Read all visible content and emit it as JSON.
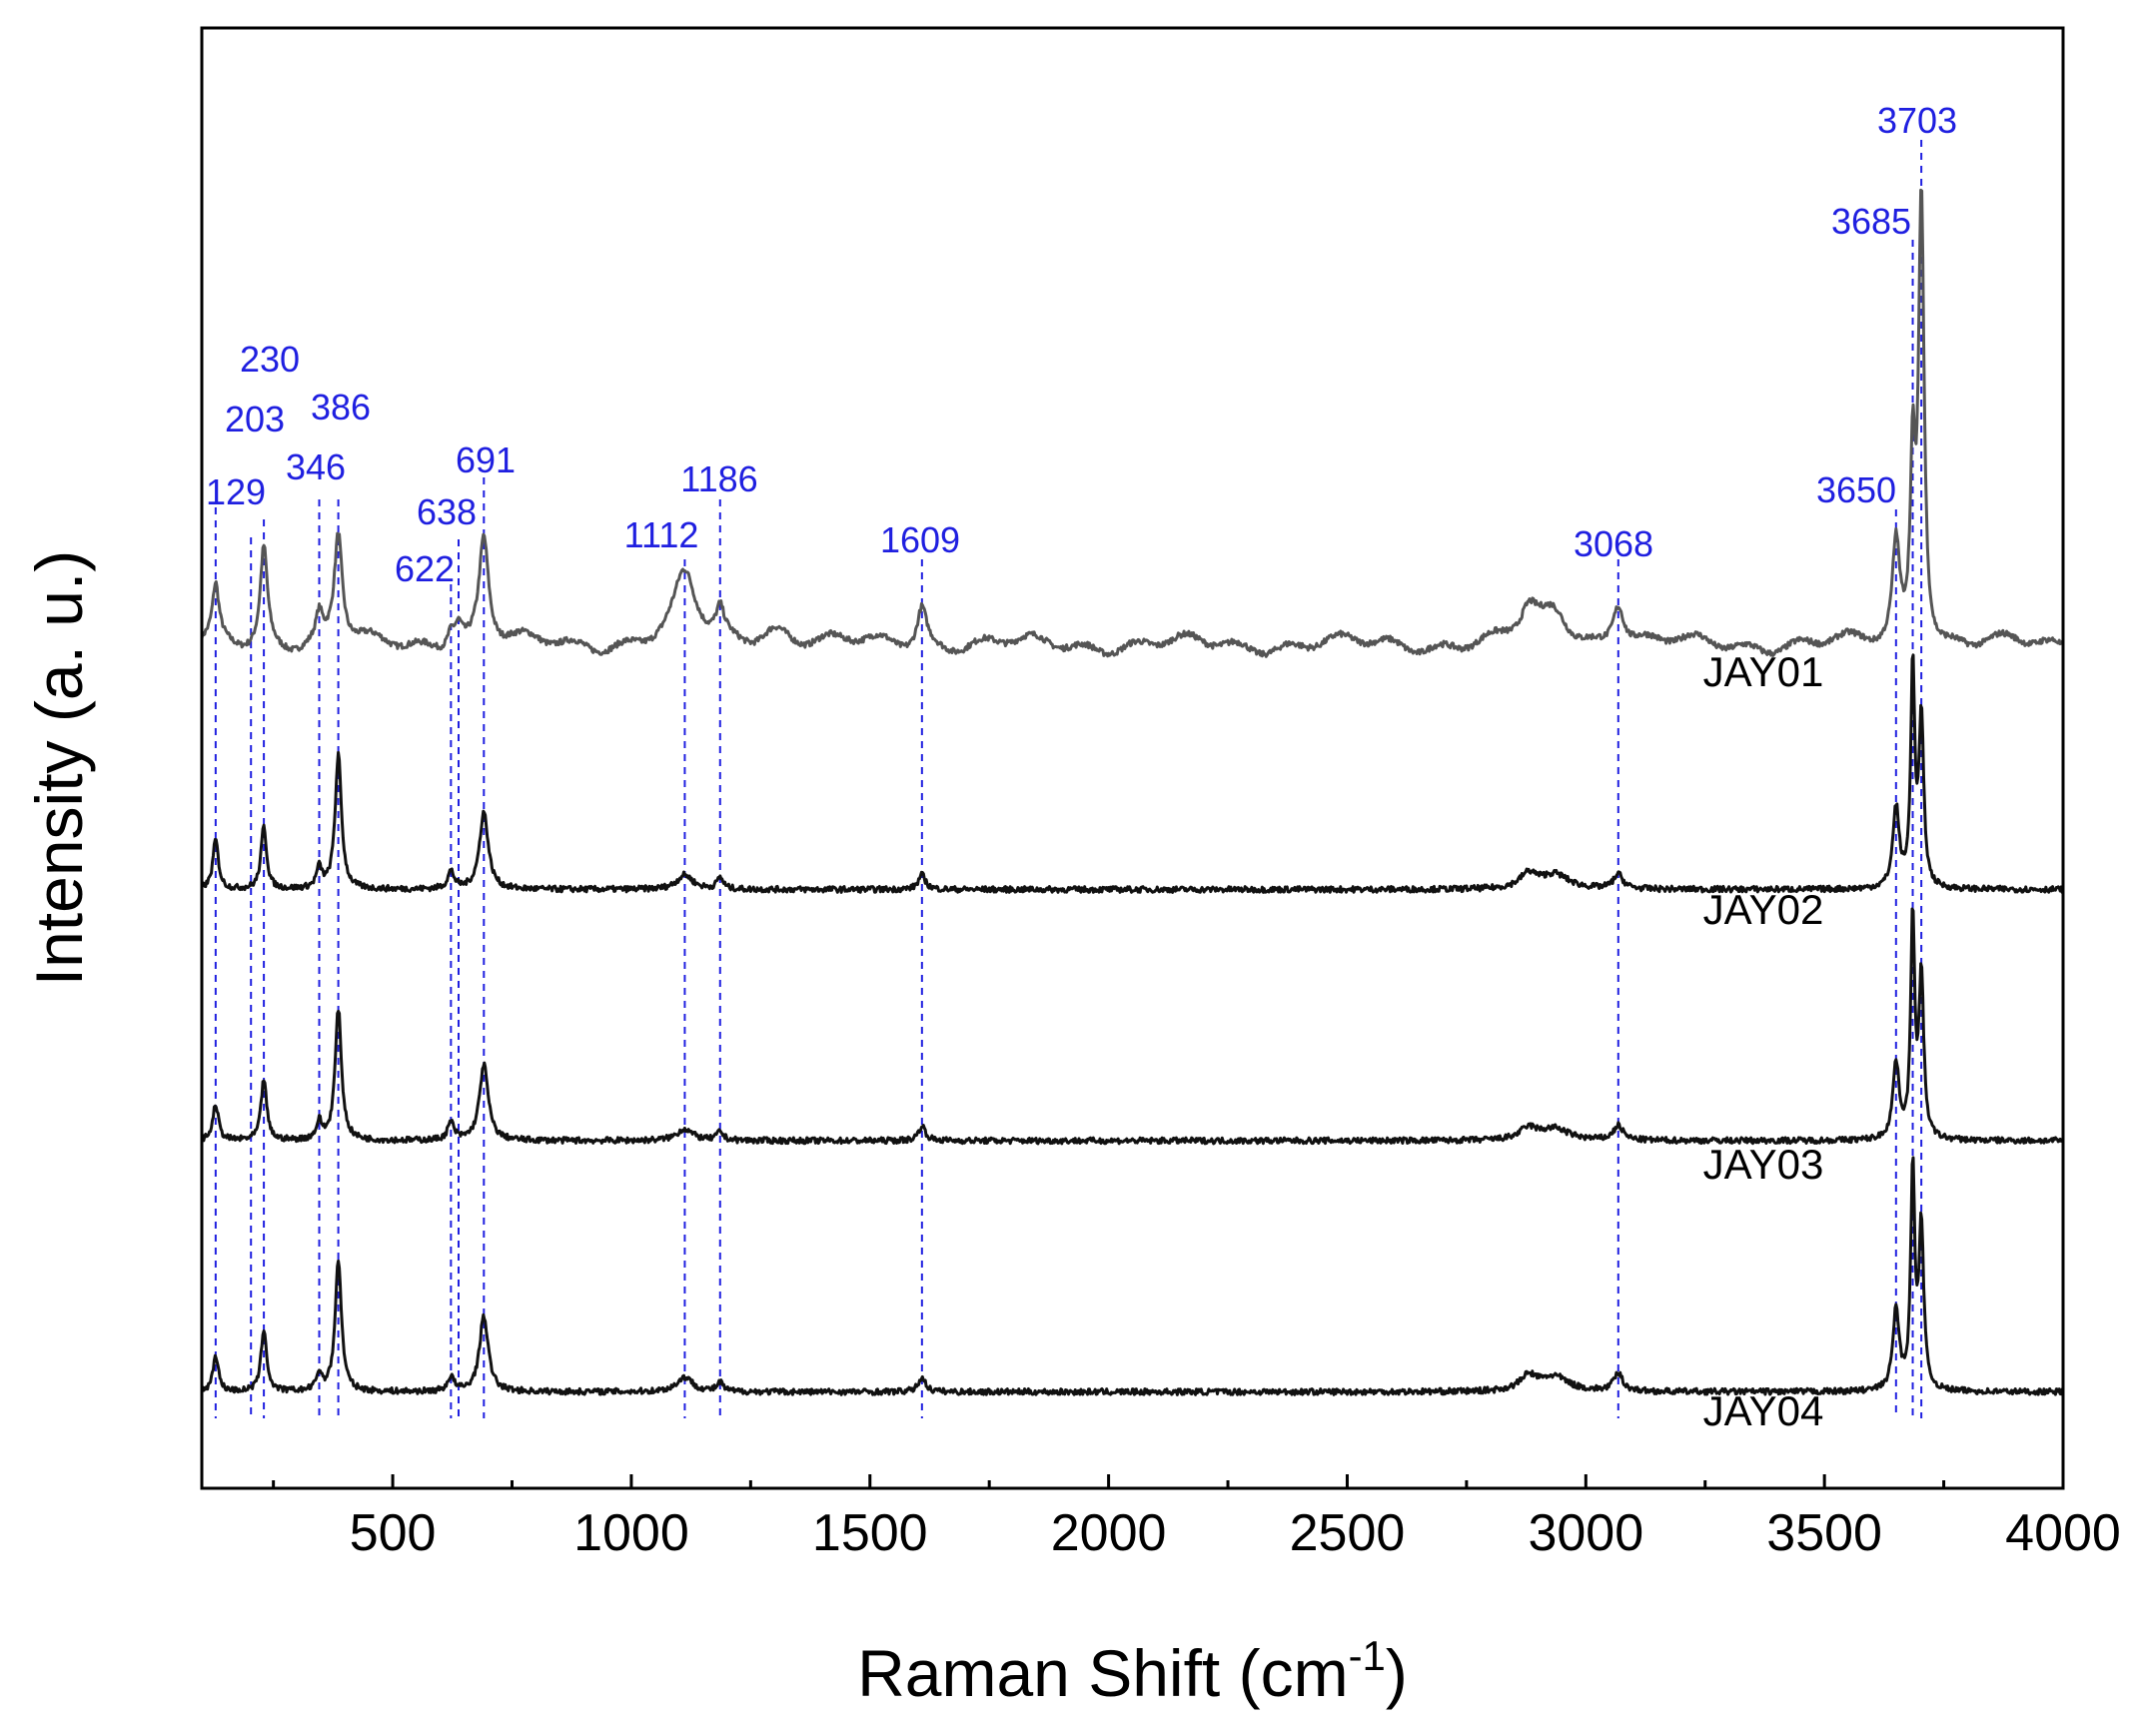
{
  "chart_data": {
    "type": "line",
    "title": "",
    "xlabel": "Raman Shift (cm",
    "xlabel_sup": "-1",
    "xlabel_end": ")",
    "ylabel": "Intensity (a. u.)",
    "xlim": [
      100,
      4000
    ],
    "ylim": [
      0,
      1
    ],
    "x_ticks": [
      500,
      1000,
      1500,
      2000,
      2500,
      3000,
      3500,
      4000
    ],
    "x_tick_labels": [
      "500",
      "1000",
      "1500",
      "2000",
      "2500",
      "3000",
      "3500",
      "4000"
    ],
    "x_minor_ticks": [
      250,
      750,
      1250,
      1750,
      2250,
      2750,
      3250,
      3750
    ],
    "y_ticks_shown": false,
    "grid": false,
    "legend": "none",
    "peak_line_color": "#1f1fe0",
    "peaks": [
      129,
      203,
      230,
      346,
      386,
      622,
      638,
      691,
      1112,
      1186,
      1609,
      3068,
      3650,
      3685,
      3703
    ],
    "peak_labels": [
      "129",
      "203",
      "230",
      "346",
      "386",
      "622",
      "638",
      "691",
      "1112",
      "1186",
      "1609",
      "3068",
      "3650",
      "3685",
      "3703"
    ],
    "series": [
      {
        "name": "JAY01",
        "color": "#555555",
        "baseline": 0.578,
        "peaks": [
          {
            "x": 129,
            "h": 0.036,
            "w": 8
          },
          {
            "x": 230,
            "h": 0.068,
            "w": 9
          },
          {
            "x": 346,
            "h": 0.018,
            "w": 8
          },
          {
            "x": 386,
            "h": 0.075,
            "w": 10
          },
          {
            "x": 622,
            "h": 0.012,
            "w": 10
          },
          {
            "x": 638,
            "h": 0.014,
            "w": 10
          },
          {
            "x": 691,
            "h": 0.073,
            "w": 12
          },
          {
            "x": 1112,
            "h": 0.045,
            "w": 28
          },
          {
            "x": 1186,
            "h": 0.018,
            "w": 10
          },
          {
            "x": 1300,
            "h": 0.012,
            "w": 40
          },
          {
            "x": 1609,
            "h": 0.028,
            "w": 12
          },
          {
            "x": 2880,
            "h": 0.02,
            "w": 22
          },
          {
            "x": 2935,
            "h": 0.022,
            "w": 35
          },
          {
            "x": 3068,
            "h": 0.03,
            "w": 15
          },
          {
            "x": 3650,
            "h": 0.068,
            "w": 9
          },
          {
            "x": 3685,
            "h": 0.12,
            "w": 6
          },
          {
            "x": 3703,
            "h": 0.31,
            "w": 7
          }
        ]
      },
      {
        "name": "JAY02",
        "color": "#111111",
        "baseline": 0.41,
        "peaks": [
          {
            "x": 129,
            "h": 0.034,
            "w": 7
          },
          {
            "x": 230,
            "h": 0.043,
            "w": 7
          },
          {
            "x": 346,
            "h": 0.014,
            "w": 7
          },
          {
            "x": 386,
            "h": 0.092,
            "w": 8
          },
          {
            "x": 622,
            "h": 0.012,
            "w": 8
          },
          {
            "x": 691,
            "h": 0.053,
            "w": 11
          },
          {
            "x": 1112,
            "h": 0.01,
            "w": 20
          },
          {
            "x": 1186,
            "h": 0.008,
            "w": 8
          },
          {
            "x": 1609,
            "h": 0.01,
            "w": 9
          },
          {
            "x": 2880,
            "h": 0.01,
            "w": 22
          },
          {
            "x": 2935,
            "h": 0.01,
            "w": 35
          },
          {
            "x": 3068,
            "h": 0.01,
            "w": 12
          },
          {
            "x": 3650,
            "h": 0.055,
            "w": 8
          },
          {
            "x": 3685,
            "h": 0.15,
            "w": 5
          },
          {
            "x": 3703,
            "h": 0.115,
            "w": 6
          }
        ]
      },
      {
        "name": "JAY03",
        "color": "#111111",
        "baseline": 0.238,
        "peaks": [
          {
            "x": 129,
            "h": 0.025,
            "w": 7
          },
          {
            "x": 230,
            "h": 0.042,
            "w": 7
          },
          {
            "x": 346,
            "h": 0.012,
            "w": 7
          },
          {
            "x": 386,
            "h": 0.09,
            "w": 8
          },
          {
            "x": 622,
            "h": 0.012,
            "w": 8
          },
          {
            "x": 691,
            "h": 0.052,
            "w": 11
          },
          {
            "x": 1112,
            "h": 0.008,
            "w": 20
          },
          {
            "x": 1186,
            "h": 0.006,
            "w": 8
          },
          {
            "x": 1609,
            "h": 0.01,
            "w": 9
          },
          {
            "x": 2880,
            "h": 0.008,
            "w": 22
          },
          {
            "x": 2935,
            "h": 0.008,
            "w": 35
          },
          {
            "x": 3068,
            "h": 0.01,
            "w": 12
          },
          {
            "x": 3650,
            "h": 0.052,
            "w": 8
          },
          {
            "x": 3685,
            "h": 0.15,
            "w": 5
          },
          {
            "x": 3703,
            "h": 0.11,
            "w": 6
          }
        ]
      },
      {
        "name": "JAY04",
        "color": "#111111",
        "baseline": 0.066,
        "peaks": [
          {
            "x": 129,
            "h": 0.025,
            "w": 7
          },
          {
            "x": 230,
            "h": 0.043,
            "w": 7
          },
          {
            "x": 346,
            "h": 0.012,
            "w": 7
          },
          {
            "x": 386,
            "h": 0.09,
            "w": 8
          },
          {
            "x": 622,
            "h": 0.01,
            "w": 8
          },
          {
            "x": 691,
            "h": 0.052,
            "w": 11
          },
          {
            "x": 1112,
            "h": 0.01,
            "w": 20
          },
          {
            "x": 1186,
            "h": 0.006,
            "w": 8
          },
          {
            "x": 1609,
            "h": 0.01,
            "w": 9
          },
          {
            "x": 2880,
            "h": 0.01,
            "w": 22
          },
          {
            "x": 2935,
            "h": 0.01,
            "w": 35
          },
          {
            "x": 3068,
            "h": 0.012,
            "w": 12
          },
          {
            "x": 3650,
            "h": 0.055,
            "w": 8
          },
          {
            "x": 3685,
            "h": 0.15,
            "w": 5
          },
          {
            "x": 3703,
            "h": 0.112,
            "w": 6
          }
        ]
      }
    ]
  }
}
